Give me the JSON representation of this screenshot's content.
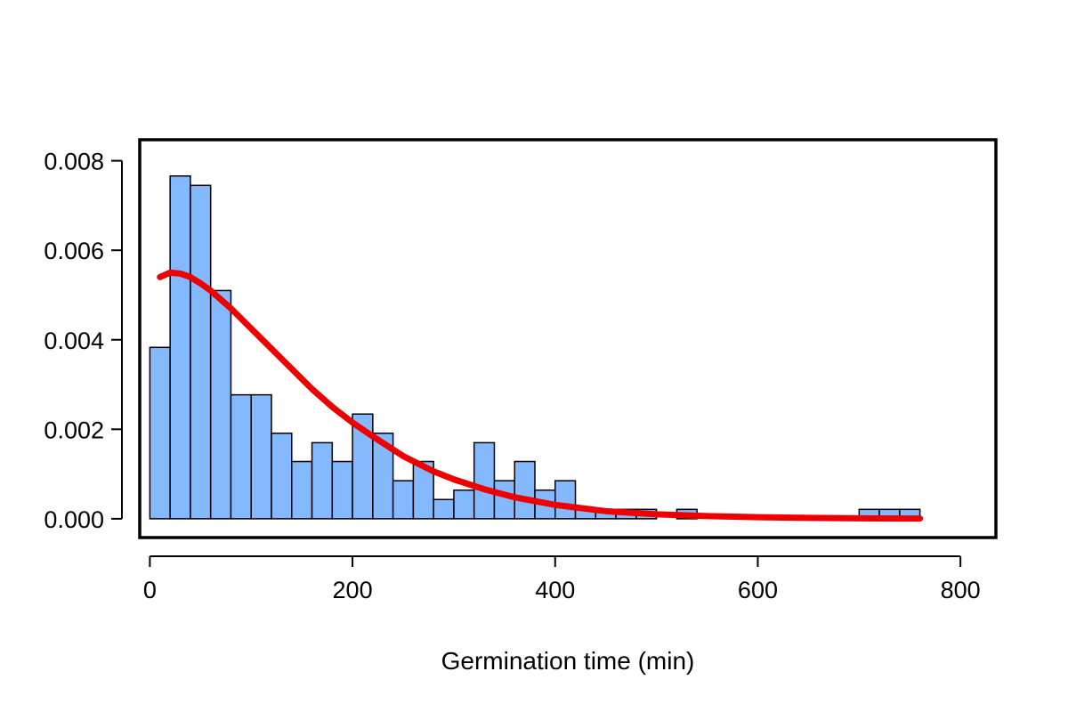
{
  "chart_data": {
    "type": "bar",
    "title": "",
    "xlabel": "Germination time (min)",
    "ylabel": "",
    "xlim": [
      -10,
      835
    ],
    "ylim": [
      -0.00042,
      0.00847
    ],
    "x_ticks": [
      0,
      200,
      400,
      600,
      800
    ],
    "x_tick_labels": [
      "0",
      "200",
      "400",
      "600",
      "800"
    ],
    "y_ticks": [
      0,
      0.002,
      0.004,
      0.006,
      0.008
    ],
    "y_tick_labels": [
      "0.000",
      "0.002",
      "0.004",
      "0.006",
      "0.008"
    ],
    "bin_width": 20,
    "bins": [
      {
        "start": 0,
        "density": 0.00383
      },
      {
        "start": 20,
        "density": 0.00766
      },
      {
        "start": 40,
        "density": 0.00745
      },
      {
        "start": 60,
        "density": 0.0051
      },
      {
        "start": 80,
        "density": 0.00277
      },
      {
        "start": 100,
        "density": 0.00277
      },
      {
        "start": 120,
        "density": 0.00191
      },
      {
        "start": 140,
        "density": 0.00128
      },
      {
        "start": 160,
        "density": 0.0017
      },
      {
        "start": 180,
        "density": 0.00128
      },
      {
        "start": 200,
        "density": 0.00234
      },
      {
        "start": 220,
        "density": 0.00191
      },
      {
        "start": 240,
        "density": 0.00085
      },
      {
        "start": 260,
        "density": 0.00128
      },
      {
        "start": 280,
        "density": 0.00043
      },
      {
        "start": 300,
        "density": 0.00064
      },
      {
        "start": 320,
        "density": 0.0017
      },
      {
        "start": 340,
        "density": 0.00085
      },
      {
        "start": 360,
        "density": 0.00128
      },
      {
        "start": 380,
        "density": 0.00064
      },
      {
        "start": 400,
        "density": 0.00085
      },
      {
        "start": 420,
        "density": 0.00021
      },
      {
        "start": 440,
        "density": 0.00021
      },
      {
        "start": 460,
        "density": 0.00021
      },
      {
        "start": 480,
        "density": 0.00021
      },
      {
        "start": 500,
        "density": 0
      },
      {
        "start": 520,
        "density": 0.00021
      },
      {
        "start": 540,
        "density": 0
      },
      {
        "start": 560,
        "density": 0
      },
      {
        "start": 580,
        "density": 0
      },
      {
        "start": 600,
        "density": 0
      },
      {
        "start": 620,
        "density": 0
      },
      {
        "start": 640,
        "density": 0
      },
      {
        "start": 660,
        "density": 0
      },
      {
        "start": 680,
        "density": 0
      },
      {
        "start": 700,
        "density": 0.00021
      },
      {
        "start": 720,
        "density": 0.00021
      },
      {
        "start": 740,
        "density": 0.00021
      }
    ],
    "fitted_curve": {
      "x": [
        10,
        20,
        30,
        40,
        50,
        60,
        70,
        80,
        100,
        120,
        140,
        160,
        180,
        200,
        220,
        250,
        280,
        300,
        330,
        360,
        400,
        450,
        500,
        550,
        600,
        650,
        700,
        760
      ],
      "y": [
        0.0054,
        0.0055,
        0.00548,
        0.0054,
        0.00526,
        0.0051,
        0.0049,
        0.0047,
        0.00425,
        0.0038,
        0.00335,
        0.0029,
        0.0025,
        0.00215,
        0.00184,
        0.0014,
        0.00106,
        0.00088,
        0.00066,
        0.00048,
        0.00031,
        0.00017,
        0.0001,
        6e-05,
        3.5e-05,
        2e-05,
        1e-05,
        5e-06
      ]
    },
    "colors": {
      "bar_fill": "#84B9FF",
      "bar_stroke": "#000000",
      "curve": "#EE0000"
    },
    "grid": false,
    "legend": "none"
  }
}
